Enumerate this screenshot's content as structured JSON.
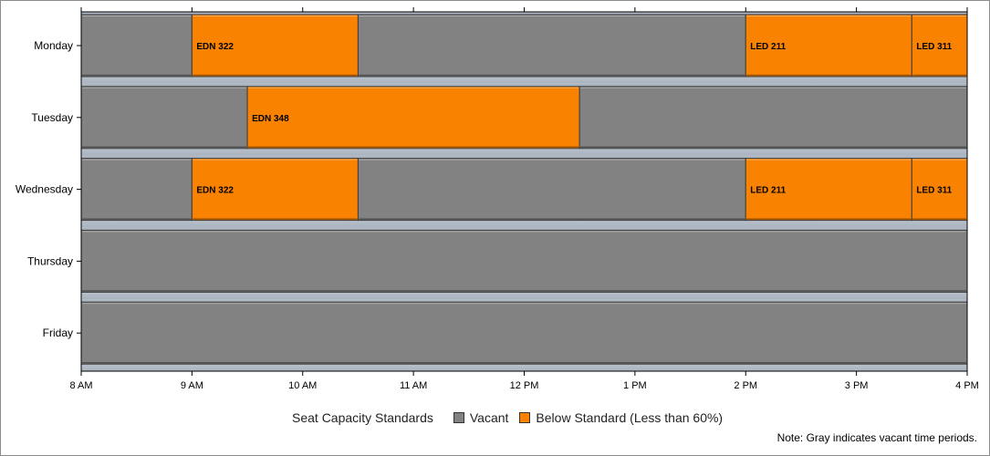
{
  "chart_data": {
    "type": "bar",
    "orientation": "horizontal-timeline",
    "categories": [
      "Monday",
      "Tuesday",
      "Wednesday",
      "Thursday",
      "Friday"
    ],
    "x_ticks": [
      {
        "value": 8,
        "label": "8 AM"
      },
      {
        "value": 9,
        "label": "9 AM"
      },
      {
        "value": 10,
        "label": "10 AM"
      },
      {
        "value": 11,
        "label": "11 AM"
      },
      {
        "value": 12,
        "label": "12 PM"
      },
      {
        "value": 13,
        "label": "1 PM"
      },
      {
        "value": 14,
        "label": "2 PM"
      },
      {
        "value": 15,
        "label": "3 PM"
      },
      {
        "value": 16,
        "label": "4 PM"
      }
    ],
    "xlim": [
      8,
      16
    ],
    "series": [
      {
        "name": "Vacant",
        "color": "#828282"
      },
      {
        "name": "Below Standard (Less than 60%)",
        "color": "#f98200"
      }
    ],
    "rows": [
      {
        "day": "Monday",
        "segments": [
          {
            "start": 8,
            "end": 9,
            "status": "Vacant",
            "label": ""
          },
          {
            "start": 9,
            "end": 10.5,
            "status": "Below Standard (Less than 60%)",
            "label": "EDN 322"
          },
          {
            "start": 10.5,
            "end": 14,
            "status": "Vacant",
            "label": ""
          },
          {
            "start": 14,
            "end": 15.5,
            "status": "Below Standard (Less than 60%)",
            "label": "LED 211"
          },
          {
            "start": 15.5,
            "end": 16,
            "status": "Below Standard (Less than 60%)",
            "label": "LED 311"
          }
        ]
      },
      {
        "day": "Tuesday",
        "segments": [
          {
            "start": 8,
            "end": 9.5,
            "status": "Vacant",
            "label": ""
          },
          {
            "start": 9.5,
            "end": 12.5,
            "status": "Below Standard (Less than 60%)",
            "label": "EDN 348"
          },
          {
            "start": 12.5,
            "end": 16,
            "status": "Vacant",
            "label": ""
          }
        ]
      },
      {
        "day": "Wednesday",
        "segments": [
          {
            "start": 8,
            "end": 9,
            "status": "Vacant",
            "label": ""
          },
          {
            "start": 9,
            "end": 10.5,
            "status": "Below Standard (Less than 60%)",
            "label": "EDN 322"
          },
          {
            "start": 10.5,
            "end": 14,
            "status": "Vacant",
            "label": ""
          },
          {
            "start": 14,
            "end": 15.5,
            "status": "Below Standard (Less than 60%)",
            "label": "LED 211"
          },
          {
            "start": 15.5,
            "end": 16,
            "status": "Below Standard (Less than 60%)",
            "label": "LED 311"
          }
        ]
      },
      {
        "day": "Thursday",
        "segments": [
          {
            "start": 8,
            "end": 16,
            "status": "Vacant",
            "label": ""
          }
        ]
      },
      {
        "day": "Friday",
        "segments": [
          {
            "start": 8,
            "end": 16,
            "status": "Vacant",
            "label": ""
          }
        ]
      }
    ],
    "grid": false,
    "legend": {
      "title": "Seat Capacity Standards",
      "placement": "bottom-center",
      "entries": [
        "Vacant",
        "Below Standard (Less than 60%)"
      ]
    },
    "footnote": "Note: Gray indicates vacant time periods."
  }
}
